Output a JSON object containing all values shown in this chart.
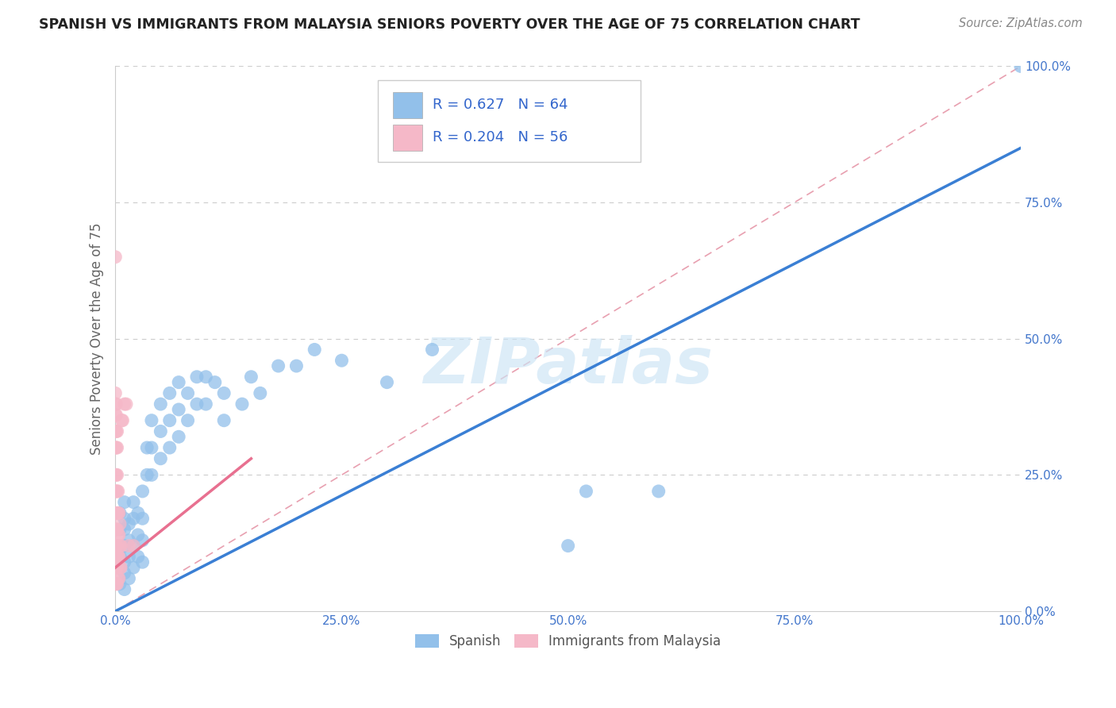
{
  "title": "SPANISH VS IMMIGRANTS FROM MALAYSIA SENIORS POVERTY OVER THE AGE OF 75 CORRELATION CHART",
  "source": "Source: ZipAtlas.com",
  "ylabel": "Seniors Poverty Over the Age of 75",
  "watermark": "ZIPatlas",
  "legend1_label": "R = 0.627   N = 64",
  "legend2_label": "R = 0.204   N = 56",
  "legend_bottom1": "Spanish",
  "legend_bottom2": "Immigrants from Malaysia",
  "spanish_color": "#92c0ea",
  "malaysia_color": "#f5b8c8",
  "spanish_line_color": "#3a7fd4",
  "malaysia_line_color": "#e87090",
  "diag_color": "#e8a0b0",
  "grid_color": "#cccccc",
  "spanish_scatter": [
    [
      0.005,
      0.05
    ],
    [
      0.005,
      0.08
    ],
    [
      0.005,
      0.1
    ],
    [
      0.005,
      0.12
    ],
    [
      0.005,
      0.15
    ],
    [
      0.005,
      0.18
    ],
    [
      0.01,
      0.04
    ],
    [
      0.01,
      0.07
    ],
    [
      0.01,
      0.09
    ],
    [
      0.01,
      0.12
    ],
    [
      0.01,
      0.15
    ],
    [
      0.01,
      0.17
    ],
    [
      0.01,
      0.2
    ],
    [
      0.015,
      0.06
    ],
    [
      0.015,
      0.1
    ],
    [
      0.015,
      0.13
    ],
    [
      0.015,
      0.16
    ],
    [
      0.02,
      0.08
    ],
    [
      0.02,
      0.12
    ],
    [
      0.02,
      0.17
    ],
    [
      0.02,
      0.2
    ],
    [
      0.025,
      0.1
    ],
    [
      0.025,
      0.14
    ],
    [
      0.025,
      0.18
    ],
    [
      0.03,
      0.09
    ],
    [
      0.03,
      0.13
    ],
    [
      0.03,
      0.17
    ],
    [
      0.03,
      0.22
    ],
    [
      0.035,
      0.25
    ],
    [
      0.035,
      0.3
    ],
    [
      0.04,
      0.25
    ],
    [
      0.04,
      0.3
    ],
    [
      0.04,
      0.35
    ],
    [
      0.05,
      0.28
    ],
    [
      0.05,
      0.33
    ],
    [
      0.05,
      0.38
    ],
    [
      0.06,
      0.3
    ],
    [
      0.06,
      0.35
    ],
    [
      0.06,
      0.4
    ],
    [
      0.07,
      0.32
    ],
    [
      0.07,
      0.37
    ],
    [
      0.07,
      0.42
    ],
    [
      0.08,
      0.35
    ],
    [
      0.08,
      0.4
    ],
    [
      0.09,
      0.38
    ],
    [
      0.09,
      0.43
    ],
    [
      0.1,
      0.38
    ],
    [
      0.1,
      0.43
    ],
    [
      0.11,
      0.42
    ],
    [
      0.12,
      0.35
    ],
    [
      0.12,
      0.4
    ],
    [
      0.14,
      0.38
    ],
    [
      0.15,
      0.43
    ],
    [
      0.16,
      0.4
    ],
    [
      0.18,
      0.45
    ],
    [
      0.2,
      0.45
    ],
    [
      0.22,
      0.48
    ],
    [
      0.25,
      0.46
    ],
    [
      0.3,
      0.42
    ],
    [
      0.35,
      0.48
    ],
    [
      0.5,
      0.12
    ],
    [
      0.52,
      0.22
    ],
    [
      0.6,
      0.22
    ],
    [
      1.0,
      1.0
    ]
  ],
  "malaysia_scatter": [
    [
      0.0,
      0.05
    ],
    [
      0.0,
      0.08
    ],
    [
      0.0,
      0.1
    ],
    [
      0.0,
      0.12
    ],
    [
      0.0,
      0.15
    ],
    [
      0.0,
      0.18
    ],
    [
      0.0,
      0.22
    ],
    [
      0.0,
      0.25
    ],
    [
      0.0,
      0.3
    ],
    [
      0.0,
      0.33
    ],
    [
      0.0,
      0.36
    ],
    [
      0.0,
      0.38
    ],
    [
      0.0,
      0.4
    ],
    [
      0.001,
      0.05
    ],
    [
      0.001,
      0.08
    ],
    [
      0.001,
      0.1
    ],
    [
      0.001,
      0.12
    ],
    [
      0.001,
      0.15
    ],
    [
      0.001,
      0.18
    ],
    [
      0.001,
      0.22
    ],
    [
      0.001,
      0.25
    ],
    [
      0.001,
      0.3
    ],
    [
      0.001,
      0.33
    ],
    [
      0.001,
      0.36
    ],
    [
      0.001,
      0.38
    ],
    [
      0.002,
      0.05
    ],
    [
      0.002,
      0.08
    ],
    [
      0.002,
      0.1
    ],
    [
      0.002,
      0.12
    ],
    [
      0.002,
      0.15
    ],
    [
      0.002,
      0.18
    ],
    [
      0.002,
      0.22
    ],
    [
      0.002,
      0.25
    ],
    [
      0.002,
      0.3
    ],
    [
      0.002,
      0.33
    ],
    [
      0.003,
      0.06
    ],
    [
      0.003,
      0.1
    ],
    [
      0.003,
      0.14
    ],
    [
      0.003,
      0.18
    ],
    [
      0.003,
      0.22
    ],
    [
      0.004,
      0.06
    ],
    [
      0.004,
      0.1
    ],
    [
      0.004,
      0.14
    ],
    [
      0.004,
      0.18
    ],
    [
      0.005,
      0.08
    ],
    [
      0.005,
      0.12
    ],
    [
      0.005,
      0.16
    ],
    [
      0.006,
      0.08
    ],
    [
      0.006,
      0.12
    ],
    [
      0.007,
      0.35
    ],
    [
      0.008,
      0.35
    ],
    [
      0.01,
      0.38
    ],
    [
      0.012,
      0.38
    ],
    [
      0.015,
      0.12
    ],
    [
      0.02,
      0.12
    ],
    [
      0.0,
      0.65
    ]
  ],
  "spanish_line_x": [
    0.0,
    1.0
  ],
  "spanish_line_y": [
    0.0,
    0.85
  ],
  "malaysia_line_x": [
    0.0,
    0.15
  ],
  "malaysia_line_y": [
    0.08,
    0.28
  ],
  "diag_line_x": [
    0.0,
    1.0
  ],
  "diag_line_y": [
    0.0,
    1.0
  ],
  "xlim": [
    0.0,
    1.0
  ],
  "ylim": [
    0.0,
    1.0
  ],
  "xtick_vals": [
    0.0,
    0.25,
    0.5,
    0.75,
    1.0
  ],
  "ytick_vals": [
    0.0,
    0.25,
    0.5,
    0.75,
    1.0
  ]
}
